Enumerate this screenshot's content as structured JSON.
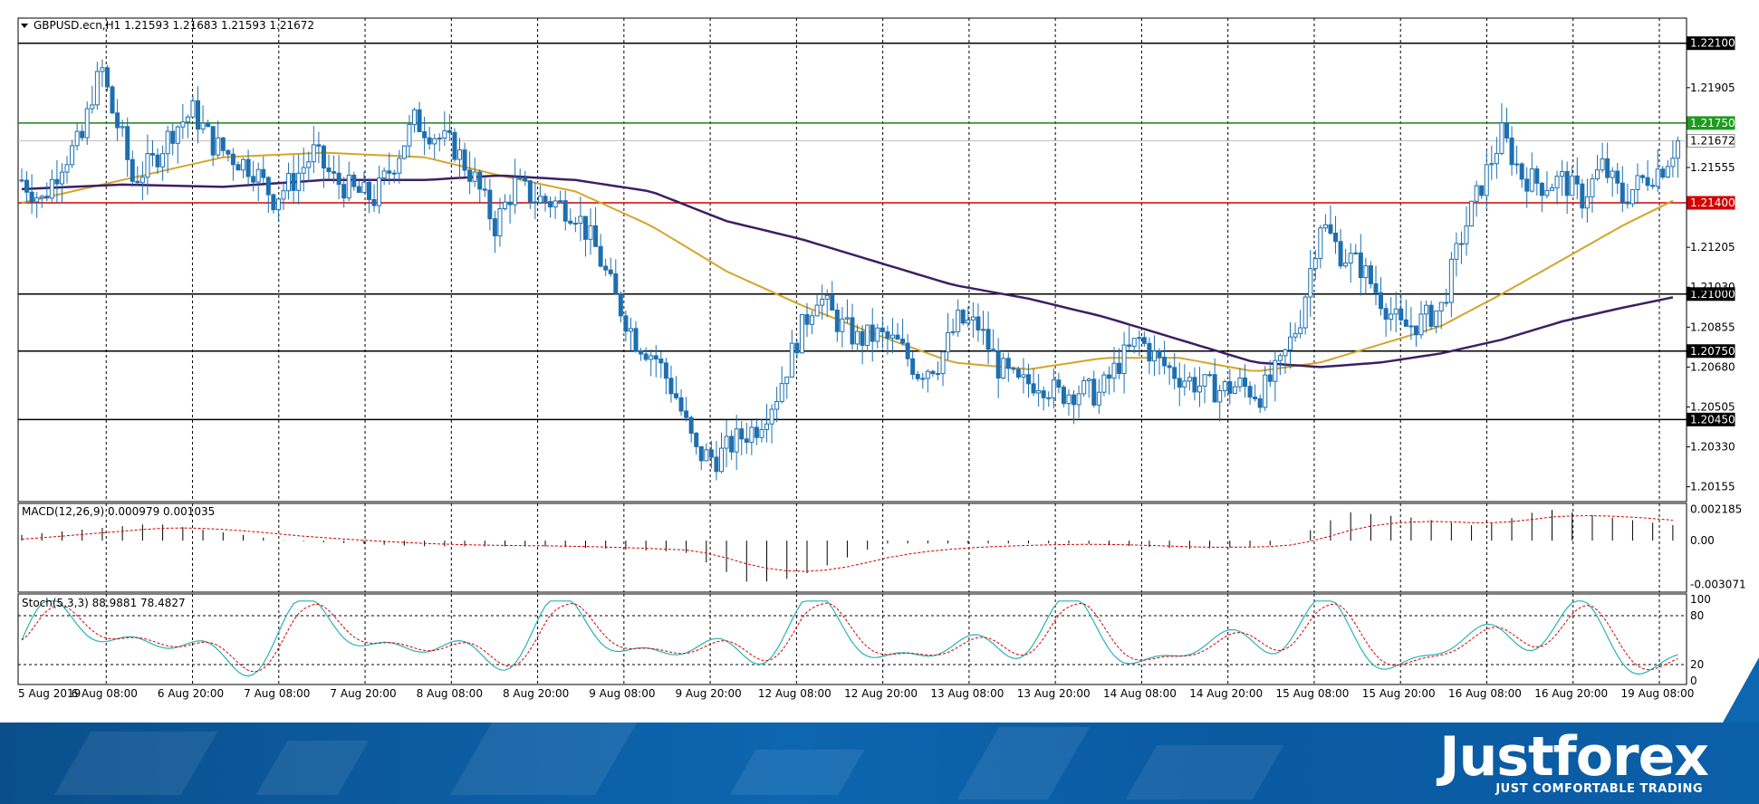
{
  "header": {
    "title": "GBPUSD.ecn,H1  1.21593 1.21683 1.21593 1.21672",
    "symbol_icon": "triangle-down-icon"
  },
  "macd": {
    "label": "MACD(12,26,9) 0.000979 0.001035"
  },
  "stoch": {
    "label": "Stoch(5,3,3) 88.9881 78.4827"
  },
  "brand": {
    "name": "Justforex",
    "tagline": "JUST COMFORTABLE TRADING"
  },
  "colors": {
    "bull": "#1d6fb0",
    "bear": "#1d6fb0",
    "ma_fast": "#d4a52a",
    "ma_slow": "#3d1f63",
    "support": "#d30000",
    "resistance": "#1e7b1e",
    "level": "#000000",
    "stoch_main": "#2bb3b3",
    "stoch_signal": "#d30000",
    "macd_signal": "#d30000"
  },
  "chart_data": [
    {
      "type": "candlestick",
      "symbol": "GBPUSD.ecn",
      "timeframe": "H1",
      "ohlc_last": {
        "open": 1.21593,
        "high": 1.21683,
        "low": 1.21593,
        "close": 1.21672
      },
      "ylim": [
        1.2009,
        1.2221
      ],
      "y_ticks": [
        "1.21905",
        "1.21555",
        "1.21205",
        "1.21030",
        "1.20855",
        "1.20680",
        "1.20505",
        "1.20330",
        "1.20155"
      ],
      "x_ticks": [
        "5 Aug 2019",
        "6 Aug 08:00",
        "6 Aug 20:00",
        "7 Aug 08:00",
        "7 Aug 20:00",
        "8 Aug 08:00",
        "8 Aug 20:00",
        "9 Aug 08:00",
        "9 Aug 20:00",
        "12 Aug 08:00",
        "12 Aug 20:00",
        "13 Aug 08:00",
        "13 Aug 20:00",
        "14 Aug 08:00",
        "14 Aug 20:00",
        "15 Aug 08:00",
        "15 Aug 20:00",
        "16 Aug 08:00",
        "16 Aug 20:00",
        "19 Aug 08:00"
      ],
      "levels": [
        {
          "value": 1.221,
          "label": "1.22100",
          "kind": "level"
        },
        {
          "value": 1.2175,
          "label": "1.21750",
          "kind": "resistance"
        },
        {
          "value": 1.21672,
          "label": "1.21672",
          "kind": "current"
        },
        {
          "value": 1.214,
          "label": "1.21400",
          "kind": "support"
        },
        {
          "value": 1.21,
          "label": "1.21000",
          "kind": "level"
        },
        {
          "value": 1.2075,
          "label": "1.20750",
          "kind": "level"
        },
        {
          "value": 1.2045,
          "label": "1.20450",
          "kind": "level"
        }
      ],
      "close_path": [
        [
          0,
          1.215
        ],
        [
          4,
          1.2141
        ],
        [
          8,
          1.2158
        ],
        [
          12,
          1.2168
        ],
        [
          14,
          1.2188
        ],
        [
          16,
          1.2198
        ],
        [
          18,
          1.218
        ],
        [
          20,
          1.2168
        ],
        [
          22,
          1.215
        ],
        [
          26,
          1.2158
        ],
        [
          30,
          1.2172
        ],
        [
          34,
          1.218
        ],
        [
          38,
          1.2166
        ],
        [
          42,
          1.216
        ],
        [
          46,
          1.2155
        ],
        [
          50,
          1.2142
        ],
        [
          54,
          1.215
        ],
        [
          58,
          1.2162
        ],
        [
          62,
          1.215
        ],
        [
          66,
          1.2145
        ],
        [
          70,
          1.2142
        ],
        [
          74,
          1.2158
        ],
        [
          78,
          1.2176
        ],
        [
          82,
          1.217
        ],
        [
          86,
          1.2164
        ],
        [
          90,
          1.215
        ],
        [
          94,
          1.213
        ],
        [
          98,
          1.2148
        ],
        [
          102,
          1.2142
        ],
        [
          106,
          1.214
        ],
        [
          110,
          1.2136
        ],
        [
          114,
          1.212
        ],
        [
          118,
          1.2098
        ],
        [
          122,
          1.208
        ],
        [
          126,
          1.2072
        ],
        [
          130,
          1.2055
        ],
        [
          134,
          1.203
        ],
        [
          138,
          1.2028
        ],
        [
          142,
          1.2036
        ],
        [
          146,
          1.2042
        ],
        [
          150,
          1.2056
        ],
        [
          154,
          1.208
        ],
        [
          158,
          1.21
        ],
        [
          162,
          1.2088
        ],
        [
          166,
          1.208
        ],
        [
          170,
          1.2082
        ],
        [
          174,
          1.2078
        ],
        [
          178,
          1.2066
        ],
        [
          182,
          1.207
        ],
        [
          186,
          1.2088
        ],
        [
          190,
          1.2086
        ],
        [
          194,
          1.2068
        ],
        [
          198,
          1.206
        ],
        [
          202,
          1.2062
        ],
        [
          206,
          1.2056
        ],
        [
          210,
          1.2058
        ],
        [
          214,
          1.2056
        ],
        [
          218,
          1.207
        ],
        [
          222,
          1.208
        ],
        [
          226,
          1.207
        ],
        [
          230,
          1.2064
        ],
        [
          234,
          1.206
        ],
        [
          238,
          1.2058
        ],
        [
          242,
          1.206
        ],
        [
          246,
          1.2056
        ],
        [
          250,
          1.2068
        ],
        [
          254,
          1.209
        ],
        [
          258,
          1.2132
        ],
        [
          262,
          1.2118
        ],
        [
          266,
          1.2112
        ],
        [
          270,
          1.2098
        ],
        [
          274,
          1.2085
        ],
        [
          278,
          1.2088
        ],
        [
          282,
          1.2094
        ],
        [
          286,
          1.2125
        ],
        [
          290,
          1.2148
        ],
        [
          294,
          1.217
        ],
        [
          298,
          1.2152
        ],
        [
          302,
          1.2148
        ],
        [
          306,
          1.215
        ],
        [
          310,
          1.2142
        ],
        [
          314,
          1.2156
        ],
        [
          318,
          1.2142
        ],
        [
          322,
          1.215
        ],
        [
          326,
          1.2156
        ],
        [
          329,
          1.2167
        ]
      ],
      "ma_fast": [
        [
          0,
          1.214
        ],
        [
          20,
          1.215
        ],
        [
          40,
          1.216
        ],
        [
          60,
          1.2162
        ],
        [
          80,
          1.216
        ],
        [
          95,
          1.2152
        ],
        [
          110,
          1.2145
        ],
        [
          125,
          1.213
        ],
        [
          140,
          1.211
        ],
        [
          155,
          1.2095
        ],
        [
          170,
          1.2082
        ],
        [
          185,
          1.207
        ],
        [
          200,
          1.2067
        ],
        [
          215,
          1.2072
        ],
        [
          230,
          1.2072
        ],
        [
          245,
          1.2066
        ],
        [
          258,
          1.207
        ],
        [
          270,
          1.2078
        ],
        [
          282,
          1.2086
        ],
        [
          294,
          1.21
        ],
        [
          306,
          1.2115
        ],
        [
          318,
          1.213
        ],
        [
          329,
          1.2142
        ]
      ],
      "ma_slow": [
        [
          0,
          1.2146
        ],
        [
          20,
          1.2148
        ],
        [
          40,
          1.2147
        ],
        [
          60,
          1.215
        ],
        [
          80,
          1.215
        ],
        [
          95,
          1.2152
        ],
        [
          110,
          1.215
        ],
        [
          125,
          1.2145
        ],
        [
          140,
          1.2132
        ],
        [
          155,
          1.2124
        ],
        [
          170,
          1.2114
        ],
        [
          185,
          1.2104
        ],
        [
          200,
          1.2098
        ],
        [
          215,
          1.209
        ],
        [
          230,
          1.208
        ],
        [
          245,
          1.207
        ],
        [
          258,
          1.2068
        ],
        [
          270,
          1.207
        ],
        [
          282,
          1.2074
        ],
        [
          294,
          1.208
        ],
        [
          306,
          1.2088
        ],
        [
          318,
          1.2094
        ],
        [
          329,
          1.2099
        ]
      ]
    },
    {
      "type": "histogram",
      "name": "MACD(12,26,9)",
      "values_summary": {
        "main": 0.000979,
        "signal": 0.001035
      },
      "y_ticks": [
        "0.002185",
        "0.00",
        "-0.003071"
      ],
      "ylim": [
        -0.0036,
        0.0026
      ]
    },
    {
      "type": "line",
      "name": "Stoch(5,3,3)",
      "values_summary": {
        "main": 88.9881,
        "signal": 78.4827
      },
      "y_ticks": [
        "100",
        "80",
        "20",
        "0"
      ],
      "ylim": [
        0,
        100
      ]
    }
  ]
}
